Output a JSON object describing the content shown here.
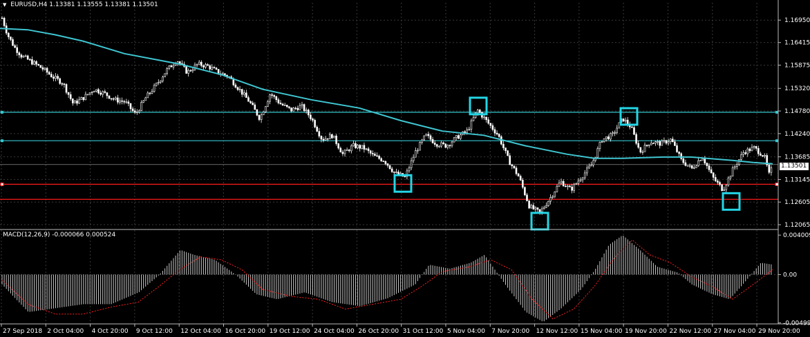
{
  "header": {
    "symbol_tf": "EURUSD,H4",
    "ohlc": "1.13381 1.13555 1.13381 1.13501"
  },
  "macd": {
    "label": "MACD(12,26,9) -0.000066 0.000524",
    "scale_labels": [
      "0.004009",
      "0.00",
      "-0.00499"
    ]
  },
  "price_axis": {
    "labels": [
      "1.16950",
      "1.16415",
      "1.15875",
      "1.15320",
      "1.14780",
      "1.14240",
      "1.13685",
      "1.13145",
      "1.12605",
      "1.12065"
    ],
    "current_price": "1.13501"
  },
  "time_axis": {
    "labels": [
      "27 Sep 2018",
      "2 Oct 04:00",
      "4 Oct 20:00",
      "9 Oct 12:00",
      "12 Oct 04:00",
      "16 Oct 20:00",
      "19 Oct 12:00",
      "24 Oct 04:00",
      "26 Oct 20:00",
      "31 Oct 12:00",
      "5 Nov 04:00",
      "7 Nov 20:00",
      "12 Nov 12:00",
      "15 Nov 04:00",
      "19 Nov 20:00",
      "22 Nov 12:00",
      "27 Nov 04:00",
      "29 Nov 20:00"
    ]
  },
  "levels": {
    "resistance": [
      "1.14750",
      "1.14070"
    ],
    "support": [
      "1.13030",
      "1.12670"
    ]
  },
  "colors": {
    "background": "#000000",
    "grid": "#3a3a3a",
    "candle": "#ffffff",
    "moving_average": "#3fc6d2",
    "resistance_line": "#37c7d1",
    "support_line": "#ff1a1a",
    "highlight_box": "#23d6e6",
    "macd_hist": "#c8c8c8",
    "macd_signal": "#ff2020"
  },
  "chart_data": {
    "type": "candlestick",
    "symbol": "EURUSD",
    "timeframe": "H4",
    "ylim": [
      1.12,
      1.172
    ],
    "moving_average": [
      [
        0,
        1.1675
      ],
      [
        40,
        1.1672
      ],
      [
        80,
        1.166
      ],
      [
        120,
        1.1645
      ],
      [
        180,
        1.1615
      ],
      [
        260,
        1.159
      ],
      [
        320,
        1.1565
      ],
      [
        380,
        1.153
      ],
      [
        450,
        1.1505
      ],
      [
        520,
        1.1485
      ],
      [
        580,
        1.1455
      ],
      [
        640,
        1.143
      ],
      [
        700,
        1.142
      ],
      [
        760,
        1.1395
      ],
      [
        820,
        1.1375
      ],
      [
        860,
        1.1365
      ],
      [
        900,
        1.1365
      ],
      [
        960,
        1.1368
      ],
      [
        1000,
        1.1368
      ],
      [
        1060,
        1.136
      ],
      [
        1090,
        1.1355
      ],
      [
        1118,
        1.1352
      ]
    ],
    "close_path": [
      [
        2,
        1.17
      ],
      [
        10,
        1.166
      ],
      [
        20,
        1.163
      ],
      [
        30,
        1.161
      ],
      [
        45,
        1.1595
      ],
      [
        60,
        1.158
      ],
      [
        75,
        1.156
      ],
      [
        90,
        1.1545
      ],
      [
        105,
        1.1495
      ],
      [
        120,
        1.151
      ],
      [
        135,
        1.153
      ],
      [
        150,
        1.152
      ],
      [
        165,
        1.1505
      ],
      [
        180,
        1.15
      ],
      [
        195,
        1.147
      ],
      [
        210,
        1.151
      ],
      [
        225,
        1.154
      ],
      [
        240,
        1.1575
      ],
      [
        255,
        1.16
      ],
      [
        270,
        1.157
      ],
      [
        285,
        1.159
      ],
      [
        300,
        1.1585
      ],
      [
        315,
        1.157
      ],
      [
        330,
        1.156
      ],
      [
        345,
        1.153
      ],
      [
        360,
        1.15
      ],
      [
        375,
        1.146
      ],
      [
        390,
        1.152
      ],
      [
        405,
        1.1495
      ],
      [
        420,
        1.148
      ],
      [
        435,
        1.149
      ],
      [
        450,
        1.146
      ],
      [
        465,
        1.141
      ],
      [
        480,
        1.142
      ],
      [
        495,
        1.1375
      ],
      [
        510,
        1.1395
      ],
      [
        525,
        1.139
      ],
      [
        540,
        1.137
      ],
      [
        555,
        1.136
      ],
      [
        570,
        1.133
      ],
      [
        585,
        1.132
      ],
      [
        600,
        1.138
      ],
      [
        615,
        1.142
      ],
      [
        630,
        1.14
      ],
      [
        645,
        1.1395
      ],
      [
        660,
        1.1415
      ],
      [
        675,
        1.143
      ],
      [
        690,
        1.148
      ],
      [
        705,
        1.145
      ],
      [
        720,
        1.142
      ],
      [
        735,
        1.136
      ],
      [
        750,
        1.132
      ],
      [
        765,
        1.125
      ],
      [
        780,
        1.1235
      ],
      [
        795,
        1.127
      ],
      [
        810,
        1.131
      ],
      [
        825,
        1.129
      ],
      [
        840,
        1.132
      ],
      [
        855,
        1.135
      ],
      [
        870,
        1.141
      ],
      [
        885,
        1.142
      ],
      [
        900,
        1.146
      ],
      [
        912,
        1.144
      ],
      [
        925,
        1.138
      ],
      [
        940,
        1.1405
      ],
      [
        955,
        1.14
      ],
      [
        970,
        1.141
      ],
      [
        985,
        1.136
      ],
      [
        1000,
        1.134
      ],
      [
        1015,
        1.137
      ],
      [
        1030,
        1.132
      ],
      [
        1045,
        1.129
      ],
      [
        1060,
        1.134
      ],
      [
        1075,
        1.138
      ],
      [
        1090,
        1.139
      ],
      [
        1105,
        1.137
      ],
      [
        1112,
        1.1325
      ],
      [
        1118,
        1.135
      ]
    ],
    "macd": {
      "histogram": [
        [
          2,
          -0.001
        ],
        [
          40,
          -0.0038
        ],
        [
          80,
          -0.0034
        ],
        [
          120,
          -0.003
        ],
        [
          160,
          -0.003
        ],
        [
          200,
          -0.0018
        ],
        [
          230,
          0.0
        ],
        [
          260,
          0.0025
        ],
        [
          280,
          0.002
        ],
        [
          310,
          0.0015
        ],
        [
          340,
          0.0
        ],
        [
          370,
          -0.002
        ],
        [
          400,
          -0.0025
        ],
        [
          440,
          -0.0018
        ],
        [
          480,
          -0.0028
        ],
        [
          520,
          -0.0032
        ],
        [
          560,
          -0.0024
        ],
        [
          600,
          -0.001
        ],
        [
          620,
          0.001
        ],
        [
          650,
          0.0006
        ],
        [
          680,
          0.0012
        ],
        [
          700,
          0.002
        ],
        [
          730,
          -0.001
        ],
        [
          760,
          -0.0038
        ],
        [
          785,
          -0.0048
        ],
        [
          810,
          -0.0035
        ],
        [
          840,
          -0.0015
        ],
        [
          860,
          0.0005
        ],
        [
          880,
          0.003
        ],
        [
          900,
          0.004
        ],
        [
          925,
          0.0025
        ],
        [
          950,
          0.0008
        ],
        [
          980,
          0.0002
        ],
        [
          1000,
          -0.001
        ],
        [
          1030,
          -0.002
        ],
        [
          1055,
          -0.0025
        ],
        [
          1080,
          -0.0005
        ],
        [
          1100,
          0.0012
        ],
        [
          1118,
          0.001
        ]
      ],
      "signal": [
        [
          2,
          -0.0005
        ],
        [
          40,
          -0.003
        ],
        [
          80,
          -0.004
        ],
        [
          120,
          -0.004
        ],
        [
          160,
          -0.0033
        ],
        [
          200,
          -0.0028
        ],
        [
          230,
          -0.0012
        ],
        [
          260,
          0.0005
        ],
        [
          290,
          0.0018
        ],
        [
          320,
          0.0015
        ],
        [
          350,
          0.0005
        ],
        [
          380,
          -0.0015
        ],
        [
          420,
          -0.0022
        ],
        [
          460,
          -0.0025
        ],
        [
          500,
          -0.0035
        ],
        [
          540,
          -0.003
        ],
        [
          580,
          -0.0025
        ],
        [
          610,
          -0.0012
        ],
        [
          640,
          0.0003
        ],
        [
          680,
          0.0008
        ],
        [
          710,
          0.0015
        ],
        [
          740,
          0.0005
        ],
        [
          770,
          -0.0025
        ],
        [
          800,
          -0.0045
        ],
        [
          830,
          -0.0035
        ],
        [
          860,
          -0.0012
        ],
        [
          890,
          0.0018
        ],
        [
          915,
          0.0035
        ],
        [
          940,
          0.002
        ],
        [
          970,
          0.0012
        ],
        [
          1000,
          -0.0002
        ],
        [
          1030,
          -0.0012
        ],
        [
          1060,
          -0.0025
        ],
        [
          1090,
          -0.001
        ],
        [
          1118,
          0.0005
        ]
      ],
      "ylim": [
        -0.005,
        0.0045
      ]
    },
    "highlight_boxes": [
      {
        "x": 583,
        "price": 1.1305
      },
      {
        "x": 692,
        "price": 1.149
      },
      {
        "x": 781,
        "price": 1.1215
      },
      {
        "x": 910,
        "price": 1.1465
      },
      {
        "x": 1058,
        "price": 1.1262
      }
    ]
  }
}
